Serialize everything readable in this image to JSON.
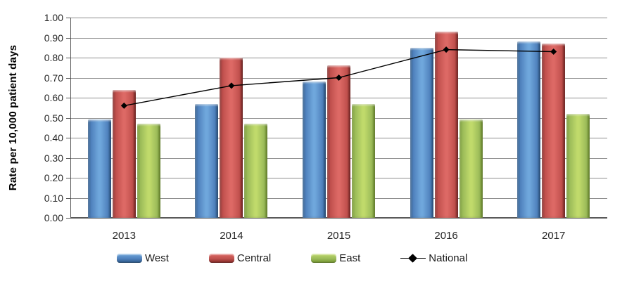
{
  "chart_data": {
    "type": "bar",
    "subtype": "clustered-bar-with-line-overlay",
    "title": "",
    "xlabel": "",
    "ylabel": "Rate per 10,000 patient days",
    "categories": [
      "2013",
      "2014",
      "2015",
      "2016",
      "2017"
    ],
    "series": [
      {
        "name": "West",
        "type": "bar",
        "color": "#4F81BD",
        "shades": {
          "light": "#6FA7DC",
          "dark": "#2C5785"
        },
        "values": [
          0.49,
          0.57,
          0.68,
          0.85,
          0.88
        ]
      },
      {
        "name": "Central",
        "type": "bar",
        "color": "#C0504D",
        "shades": {
          "light": "#DD6965",
          "dark": "#7F2725"
        },
        "values": [
          0.64,
          0.8,
          0.76,
          0.93,
          0.87
        ]
      },
      {
        "name": "East",
        "type": "bar",
        "color": "#9BBB59",
        "shades": {
          "light": "#C0DA6B",
          "dark": "#71922E"
        },
        "values": [
          0.47,
          0.47,
          0.57,
          0.49,
          0.52
        ]
      },
      {
        "name": "National",
        "type": "line",
        "color": "#000000",
        "marker": "diamond",
        "values": [
          0.56,
          0.66,
          0.7,
          0.84,
          0.83
        ]
      }
    ],
    "ylim": [
      0.0,
      1.0
    ],
    "ytick_step": 0.1,
    "ytick_labels": [
      "0.00",
      "0.10",
      "0.20",
      "0.30",
      "0.40",
      "0.50",
      "0.60",
      "0.70",
      "0.80",
      "0.90",
      "1.00"
    ],
    "grid": true,
    "gridline_color": "#8e8e8e",
    "axis_color": "#595959",
    "text_color": "#262626",
    "legend_position": "bottom",
    "legend_labels": [
      "West",
      "Central",
      "East",
      "National"
    ]
  }
}
